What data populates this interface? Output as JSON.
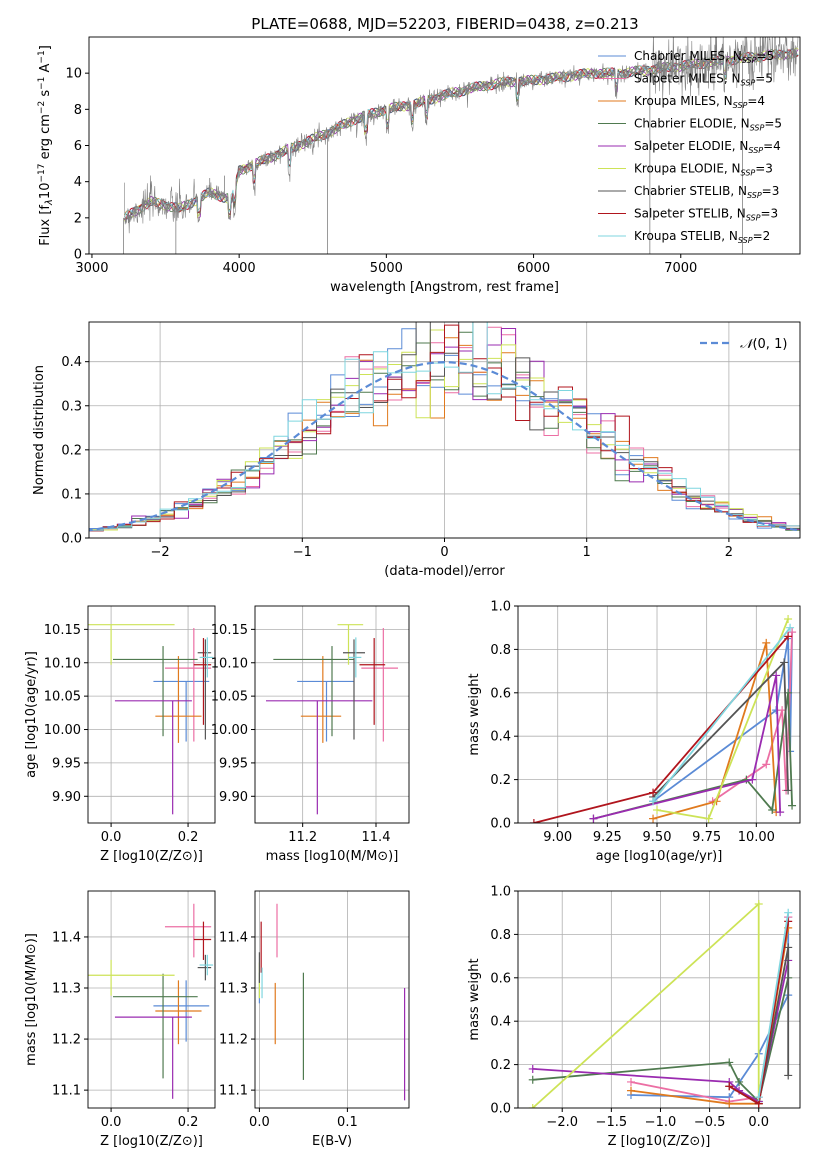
{
  "figure_title": "PLATE=0688, MJD=52203, FIBERID=0438, z=0.213",
  "colors": {
    "Chabrier MILES": "#5b8bd6",
    "Salpeter MILES": "#ec6fa4",
    "Kroupa MILES": "#e07a1e",
    "Chabrier ELODIE": "#4f7a4f",
    "Salpeter ELODIE": "#9a2bb0",
    "Kroupa ELODIE": "#cde357",
    "Chabrier STELIB": "#555555",
    "Salpeter STELIB": "#b0151d",
    "Kroupa STELIB": "#7fd6df",
    "gaussian": "#5b8bd6",
    "spectrum": "#808080"
  },
  "chart_data": [
    {
      "id": "spectrum",
      "type": "line",
      "title": "PLATE=0688, MJD=52203, FIBERID=0438, z=0.213",
      "xlabel": "wavelength [Angstrom, rest frame]",
      "ylabel": "Flux [f_λ 10^-17 erg cm^-2 s^-1 A^-1]",
      "xlim": [
        2980,
        7810
      ],
      "ylim": [
        0,
        12
      ],
      "xticks": [
        3000,
        4000,
        5000,
        6000,
        7000
      ],
      "yticks": [
        0,
        2,
        4,
        6,
        8,
        10
      ],
      "grid": false,
      "legend": "top-right",
      "continuum": [
        [
          3220,
          2.0
        ],
        [
          3400,
          2.9
        ],
        [
          3600,
          2.5
        ],
        [
          3800,
          3.4
        ],
        [
          3950,
          3.0
        ],
        [
          4000,
          4.6
        ],
        [
          4200,
          5.3
        ],
        [
          4400,
          6.0
        ],
        [
          4600,
          6.7
        ],
        [
          4800,
          7.5
        ],
        [
          5000,
          8.0
        ],
        [
          5200,
          8.3
        ],
        [
          5400,
          8.8
        ],
        [
          5600,
          9.2
        ],
        [
          5800,
          9.5
        ],
        [
          6000,
          9.6
        ],
        [
          6200,
          9.8
        ],
        [
          6400,
          10.0
        ],
        [
          6600,
          10.0
        ],
        [
          6800,
          10.2
        ],
        [
          7000,
          10.4
        ],
        [
          7200,
          10.6
        ],
        [
          7400,
          10.8
        ],
        [
          7600,
          11.0
        ],
        [
          7800,
          11.1
        ]
      ],
      "series": [
        {
          "name": "Chabrier MILES, N_SSP=5"
        },
        {
          "name": "Salpeter MILES, N_SSP=5"
        },
        {
          "name": "Kroupa MILES, N_SSP=4"
        },
        {
          "name": "Chabrier ELODIE, N_SSP=5"
        },
        {
          "name": "Salpeter ELODIE, N_SSP=4"
        },
        {
          "name": "Kroupa ELODIE, N_SSP=3"
        },
        {
          "name": "Chabrier STELIB, N_SSP=3"
        },
        {
          "name": "Salpeter STELIB, N_SSP=3"
        },
        {
          "name": "Kroupa STELIB, N_SSP=2"
        }
      ]
    },
    {
      "id": "residuals",
      "type": "histogram",
      "xlabel": "(data-model)/error",
      "ylabel": "Normed distribution",
      "xlim": [
        -2.5,
        2.5
      ],
      "ylim": [
        0,
        0.49
      ],
      "xticks": [
        -2,
        -1,
        0,
        1,
        2
      ],
      "yticks": [
        0.0,
        0.1,
        0.2,
        0.3,
        0.4
      ],
      "grid": true,
      "legend": "top-right",
      "gaussian_label": "N(0,1)",
      "bin_width": 0.1
    },
    {
      "id": "age_vs_Z",
      "type": "errorbar",
      "xlabel": "Z [log10(Z/Z⊙)]",
      "ylabel": "age [log10(age/yr)]",
      "xlim": [
        -0.06,
        0.27
      ],
      "ylim": [
        9.86,
        10.185
      ],
      "xticks": [
        0.0,
        0.2
      ],
      "yticks": [
        9.9,
        9.95,
        10.0,
        10.05,
        10.1,
        10.15
      ],
      "grid": true,
      "points": [
        {
          "s": "Chabrier MILES",
          "x": 0.195,
          "y": 10.072,
          "xerr": [
            0.085,
            0.06
          ],
          "yerr": [
            0.09,
            0.0
          ]
        },
        {
          "s": "Salpeter MILES",
          "x": 0.215,
          "y": 10.092,
          "xerr": [
            0.075,
            0.045
          ],
          "yerr": [
            0.11,
            0.06
          ]
        },
        {
          "s": "Kroupa MILES",
          "x": 0.175,
          "y": 10.02,
          "xerr": [
            0.06,
            0.06
          ],
          "yerr": [
            0.04,
            0.09
          ]
        },
        {
          "s": "Chabrier ELODIE",
          "x": 0.135,
          "y": 10.105,
          "xerr": [
            0.13,
            0.09
          ],
          "yerr": [
            0.115,
            0.02
          ]
        },
        {
          "s": "Salpeter ELODIE",
          "x": 0.16,
          "y": 10.043,
          "xerr": [
            0.15,
            0.05
          ],
          "yerr": [
            0.17,
            0.0
          ]
        },
        {
          "s": "Kroupa ELODIE",
          "x": 0.0,
          "y": 10.157,
          "xerr": [
            0.06,
            0.165
          ],
          "yerr": [
            0.06,
            0.0
          ]
        },
        {
          "s": "Chabrier STELIB",
          "x": 0.245,
          "y": 10.115,
          "xerr": [
            0.02,
            0.015
          ],
          "yerr": [
            0.13,
            0.02
          ]
        },
        {
          "s": "Salpeter STELIB",
          "x": 0.24,
          "y": 10.097,
          "xerr": [
            0.025,
            0.02
          ],
          "yerr": [
            0.09,
            0.04
          ]
        },
        {
          "s": "Kroupa STELIB",
          "x": 0.25,
          "y": 10.108,
          "xerr": [
            0.02,
            0.015
          ],
          "yerr": [
            0.03,
            0.03
          ]
        }
      ]
    },
    {
      "id": "age_vs_mass",
      "type": "errorbar",
      "xlabel": "mass [log10(M/M⊙)]",
      "ylabel": "",
      "xlim": [
        11.07,
        11.49
      ],
      "ylim": [
        9.86,
        10.185
      ],
      "xticks": [
        11.2,
        11.4
      ],
      "yticks": [
        9.9,
        9.95,
        10.0,
        10.05,
        10.1,
        10.15
      ],
      "grid": true,
      "points": [
        {
          "s": "Chabrier MILES",
          "x": 11.265,
          "y": 10.072,
          "xerr": [
            0.08,
            0.075
          ],
          "yerr": [
            0.09,
            0.0
          ]
        },
        {
          "s": "Salpeter MILES",
          "x": 11.42,
          "y": 10.092,
          "xerr": [
            0.06,
            0.04
          ],
          "yerr": [
            0.11,
            0.06
          ]
        },
        {
          "s": "Kroupa MILES",
          "x": 11.255,
          "y": 10.02,
          "xerr": [
            0.06,
            0.05
          ],
          "yerr": [
            0.04,
            0.09
          ]
        },
        {
          "s": "Chabrier ELODIE",
          "x": 11.28,
          "y": 10.105,
          "xerr": [
            0.16,
            0.06
          ],
          "yerr": [
            0.115,
            0.02
          ]
        },
        {
          "s": "Salpeter ELODIE",
          "x": 11.24,
          "y": 10.043,
          "xerr": [
            0.14,
            0.15
          ],
          "yerr": [
            0.17,
            0.0
          ]
        },
        {
          "s": "Kroupa ELODIE",
          "x": 11.325,
          "y": 10.157,
          "xerr": [
            0.03,
            0.04
          ],
          "yerr": [
            0.06,
            0.0
          ]
        },
        {
          "s": "Chabrier STELIB",
          "x": 11.34,
          "y": 10.115,
          "xerr": [
            0.03,
            0.03
          ],
          "yerr": [
            0.13,
            0.02
          ]
        },
        {
          "s": "Salpeter STELIB",
          "x": 11.395,
          "y": 10.097,
          "xerr": [
            0.04,
            0.03
          ],
          "yerr": [
            0.09,
            0.04
          ]
        },
        {
          "s": "Kroupa STELIB",
          "x": 11.345,
          "y": 10.108,
          "xerr": [
            0.02,
            0.015
          ],
          "yerr": [
            0.03,
            0.03
          ]
        }
      ]
    },
    {
      "id": "mass_weight_vs_age",
      "type": "line",
      "xlabel": "age [log10(age/yr)]",
      "ylabel": "mass weight",
      "xlim": [
        8.8,
        10.22
      ],
      "ylim": [
        0,
        1
      ],
      "xticks": [
        9.0,
        9.25,
        9.5,
        9.75,
        10.0
      ],
      "yticks": [
        0.0,
        0.2,
        0.4,
        0.6,
        0.8,
        1.0
      ],
      "grid": true,
      "series": [
        {
          "s": "Chabrier MILES",
          "x": [
            9.48,
            10.1,
            10.16,
            10.17,
            10.18
          ],
          "y": [
            0.1,
            0.52,
            0.85,
            0.33,
            0.88
          ]
        },
        {
          "s": "Salpeter MILES",
          "x": [
            9.78,
            10.05,
            10.13,
            10.15,
            10.18
          ],
          "y": [
            0.1,
            0.27,
            0.52,
            0.15,
            0.88
          ]
        },
        {
          "s": "Kroupa MILES",
          "x": [
            9.48,
            9.8,
            10.05,
            10.1
          ],
          "y": [
            0.02,
            0.1,
            0.83,
            0.05
          ]
        },
        {
          "s": "Chabrier ELODIE",
          "x": [
            9.18,
            9.95,
            10.08,
            10.16,
            10.18
          ],
          "y": [
            0.02,
            0.2,
            0.06,
            0.6,
            0.08
          ]
        },
        {
          "s": "Salpeter ELODIE",
          "x": [
            9.18,
            9.98,
            10.1,
            10.12
          ],
          "y": [
            0.02,
            0.2,
            0.68,
            0.05
          ]
        },
        {
          "s": "Kroupa ELODIE",
          "x": [
            9.5,
            9.76,
            10.16
          ],
          "y": [
            0.06,
            0.02,
            0.94
          ]
        },
        {
          "s": "Chabrier STELIB",
          "x": [
            9.48,
            10.14,
            10.16
          ],
          "y": [
            0.12,
            0.74,
            0.15
          ]
        },
        {
          "s": "Salpeter STELIB",
          "x": [
            8.88,
            9.48,
            10.16
          ],
          "y": [
            0.0,
            0.14,
            0.86
          ]
        },
        {
          "s": "Kroupa STELIB",
          "x": [
            9.48,
            10.17
          ],
          "y": [
            0.1,
            0.9
          ]
        }
      ]
    },
    {
      "id": "mass_vs_Z",
      "type": "errorbar",
      "xlabel": "Z [log10(Z/Z⊙)]",
      "ylabel": "mass [log10(M/M⊙)]",
      "xlim": [
        -0.06,
        0.27
      ],
      "ylim": [
        11.065,
        11.49
      ],
      "xticks": [
        0.0,
        0.2
      ],
      "yticks": [
        11.1,
        11.2,
        11.3,
        11.4
      ],
      "grid": true,
      "points": [
        {
          "s": "Chabrier MILES",
          "x": 0.195,
          "y": 11.265,
          "xerr": [
            0.085,
            0.06
          ],
          "yerr": [
            0.07,
            0.05
          ]
        },
        {
          "s": "Salpeter MILES",
          "x": 0.215,
          "y": 11.42,
          "xerr": [
            0.075,
            0.045
          ],
          "yerr": [
            0.06,
            0.045
          ]
        },
        {
          "s": "Kroupa MILES",
          "x": 0.175,
          "y": 11.255,
          "xerr": [
            0.06,
            0.06
          ],
          "yerr": [
            0.065,
            0.06
          ]
        },
        {
          "s": "Chabrier ELODIE",
          "x": 0.135,
          "y": 11.283,
          "xerr": [
            0.13,
            0.09
          ],
          "yerr": [
            0.16,
            0.045
          ]
        },
        {
          "s": "Salpeter ELODIE",
          "x": 0.16,
          "y": 11.243,
          "xerr": [
            0.15,
            0.05
          ],
          "yerr": [
            0.16,
            0.0
          ]
        },
        {
          "s": "Kroupa ELODIE",
          "x": 0.0,
          "y": 11.325,
          "xerr": [
            0.06,
            0.165
          ],
          "yerr": [
            0.04,
            0.03
          ]
        },
        {
          "s": "Chabrier STELIB",
          "x": 0.245,
          "y": 11.34,
          "xerr": [
            0.02,
            0.015
          ],
          "yerr": [
            0.025,
            0.025
          ]
        },
        {
          "s": "Salpeter STELIB",
          "x": 0.24,
          "y": 11.395,
          "xerr": [
            0.025,
            0.02
          ],
          "yerr": [
            0.04,
            0.035
          ]
        },
        {
          "s": "Kroupa STELIB",
          "x": 0.25,
          "y": 11.345,
          "xerr": [
            0.02,
            0.015
          ],
          "yerr": [
            0.02,
            0.02
          ]
        }
      ]
    },
    {
      "id": "mass_vs_ebv",
      "type": "errorbar",
      "xlabel": "E(B-V)",
      "ylabel": "",
      "xlim": [
        -0.005,
        0.17
      ],
      "ylim": [
        11.065,
        11.49
      ],
      "xticks": [
        0.0,
        0.1
      ],
      "yticks": [
        11.1,
        11.2,
        11.3,
        11.4
      ],
      "grid": true,
      "points": [
        {
          "s": "Chabrier MILES",
          "x": 0.0,
          "y": 11.3,
          "xerr": [
            0,
            0
          ],
          "yerr": [
            0.03,
            0.03
          ]
        },
        {
          "s": "Salpeter MILES",
          "x": 0.02,
          "y": 11.42,
          "xerr": [
            0,
            0
          ],
          "yerr": [
            0.06,
            0.045
          ]
        },
        {
          "s": "Kroupa MILES",
          "x": 0.018,
          "y": 11.26,
          "xerr": [
            0,
            0
          ],
          "yerr": [
            0.07,
            0.05
          ]
        },
        {
          "s": "Chabrier ELODIE",
          "x": 0.05,
          "y": 11.23,
          "xerr": [
            0,
            0
          ],
          "yerr": [
            0.11,
            0.1
          ]
        },
        {
          "s": "Salpeter ELODIE",
          "x": 0.165,
          "y": 11.2,
          "xerr": [
            0,
            0
          ],
          "yerr": [
            0.12,
            0.1
          ]
        },
        {
          "s": "Kroupa ELODIE",
          "x": 0.0,
          "y": 11.32,
          "xerr": [
            0,
            0
          ],
          "yerr": [
            0.04,
            0.03
          ]
        },
        {
          "s": "Chabrier STELIB",
          "x": 0.0,
          "y": 11.34,
          "xerr": [
            0,
            0
          ],
          "yerr": [
            0.03,
            0.03
          ]
        },
        {
          "s": "Salpeter STELIB",
          "x": 0.002,
          "y": 11.38,
          "xerr": [
            0,
            0
          ],
          "yerr": [
            0.05,
            0.05
          ]
        },
        {
          "s": "Kroupa STELIB",
          "x": 0.003,
          "y": 11.31,
          "xerr": [
            0,
            0
          ],
          "yerr": [
            0.03,
            0.03
          ]
        }
      ]
    },
    {
      "id": "mass_weight_vs_Z",
      "type": "line",
      "xlabel": "Z [log10(Z/Z⊙)]",
      "ylabel": "mass weight",
      "xlim": [
        -2.45,
        0.42
      ],
      "ylim": [
        0,
        1
      ],
      "xticks": [
        -2.0,
        -1.5,
        -1.0,
        -0.5,
        0.0
      ],
      "yticks": [
        0.0,
        0.2,
        0.4,
        0.6,
        0.8,
        1.0
      ],
      "grid": true,
      "series": [
        {
          "s": "Chabrier MILES",
          "x": [
            -1.3,
            -0.3,
            0.0,
            0.3,
            0.3
          ],
          "y": [
            0.06,
            0.05,
            0.25,
            0.52,
            0.88
          ]
        },
        {
          "s": "Salpeter MILES",
          "x": [
            -1.3,
            -0.3,
            0.0,
            0.3
          ],
          "y": [
            0.12,
            0.03,
            0.05,
            0.88
          ]
        },
        {
          "s": "Kroupa MILES",
          "x": [
            -1.3,
            -0.3,
            0.0,
            0.3
          ],
          "y": [
            0.08,
            0.02,
            0.02,
            0.83
          ]
        },
        {
          "s": "Chabrier ELODIE",
          "x": [
            -2.3,
            -0.3,
            -0.2,
            0.0,
            0.3
          ],
          "y": [
            0.13,
            0.21,
            0.12,
            0.03,
            0.6
          ]
        },
        {
          "s": "Salpeter ELODIE",
          "x": [
            -2.3,
            -0.3,
            -0.2,
            0.0,
            0.3
          ],
          "y": [
            0.18,
            0.12,
            0.08,
            0.03,
            0.68
          ]
        },
        {
          "s": "Kroupa ELODIE",
          "x": [
            -2.3,
            0.0,
            0.0
          ],
          "y": [
            0.0,
            0.94,
            0.02
          ]
        },
        {
          "s": "Chabrier STELIB",
          "x": [
            -0.3,
            0.0,
            0.3,
            0.3
          ],
          "y": [
            0.1,
            0.02,
            0.74,
            0.15
          ]
        },
        {
          "s": "Salpeter STELIB",
          "x": [
            -0.3,
            0.0,
            0.3
          ],
          "y": [
            0.1,
            0.02,
            0.86
          ]
        },
        {
          "s": "Kroupa STELIB",
          "x": [
            0.0,
            0.3
          ],
          "y": [
            0.05,
            0.9
          ]
        }
      ]
    }
  ]
}
